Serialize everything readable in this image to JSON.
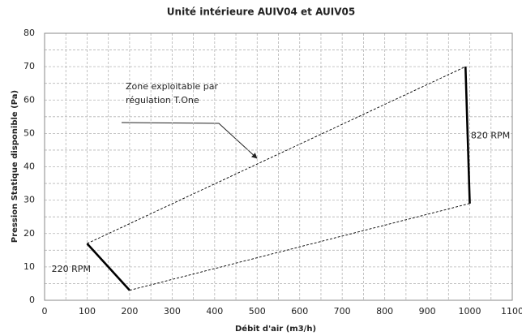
{
  "chart_data": {
    "type": "line",
    "title": "Unité intérieure AUIV04 et AUIV05",
    "xlabel": "Débit d'air (m3/h)",
    "ylabel": "Pression Statique disponible (Pa)",
    "xlim": [
      0,
      1100
    ],
    "xticks": [
      0,
      100,
      200,
      300,
      400,
      500,
      600,
      700,
      800,
      900,
      1000,
      1100
    ],
    "minor_xticks": [
      50,
      150,
      250,
      350,
      450,
      550,
      650,
      750,
      850,
      950,
      1050
    ],
    "ylim": [
      0,
      80
    ],
    "yticks": [
      0,
      10,
      20,
      30,
      40,
      50,
      60,
      70,
      80
    ],
    "minor_yticks": [
      5,
      15,
      25,
      35,
      45,
      55,
      65,
      75
    ],
    "grid": true,
    "series": [
      {
        "x": [
          100,
          990
        ],
        "values": [
          17,
          70
        ],
        "color": "#000000",
        "dashed": true
      },
      {
        "x": [
          200,
          1000
        ],
        "values": [
          3,
          29
        ],
        "color": "#000000",
        "dashed": true
      },
      {
        "name": "220 RPM",
        "x": [
          100,
          200
        ],
        "values": [
          17,
          3
        ],
        "color": "#000000",
        "dashed": false
      },
      {
        "name": "820 RPM",
        "x": [
          990,
          1000
        ],
        "values": [
          70,
          29
        ],
        "color": "#000000",
        "dashed": false
      }
    ],
    "annotation": [
      "Zone exploitable par",
      "régulation T.One"
    ]
  }
}
